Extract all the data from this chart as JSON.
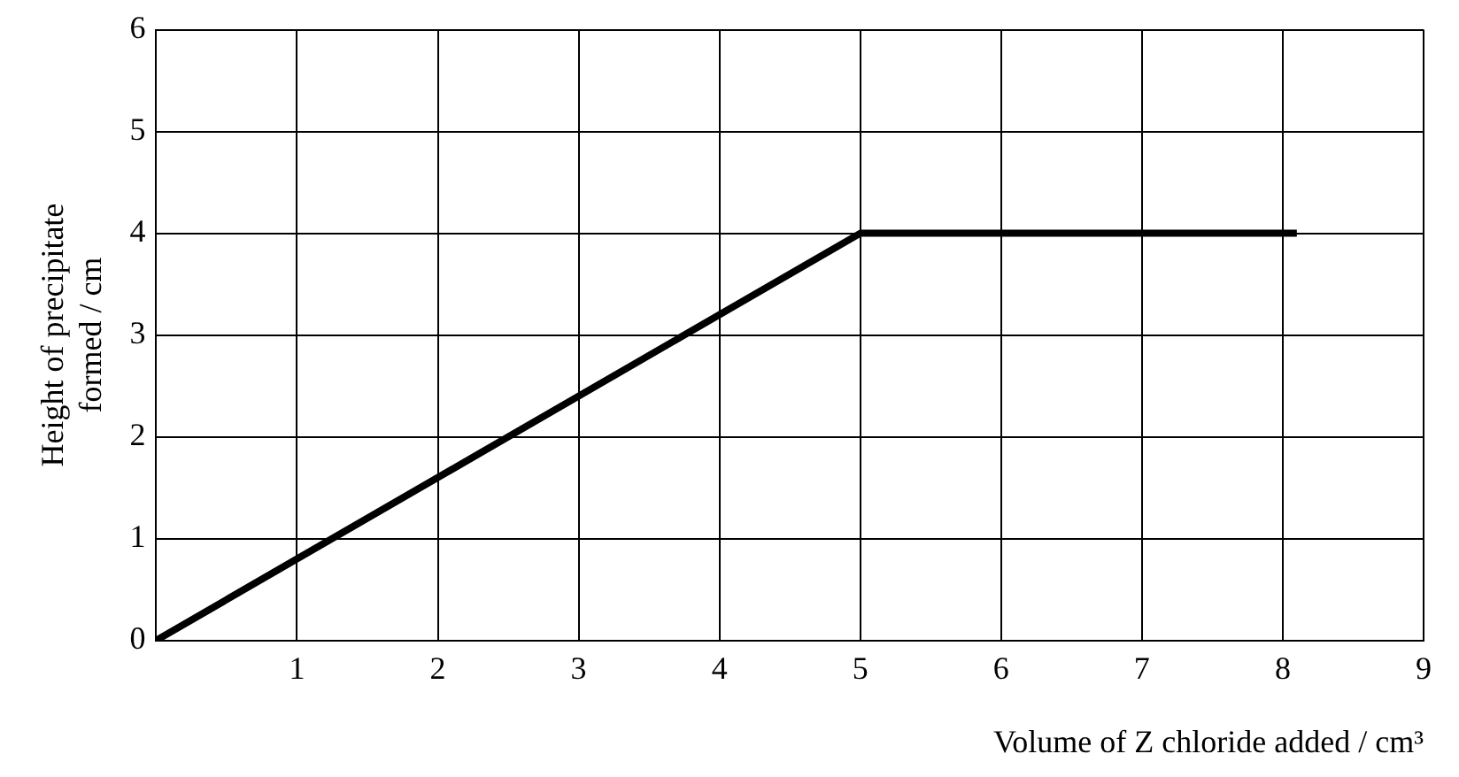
{
  "chart_data": {
    "type": "line",
    "xlabel": "Volume of Z chloride added / cm³",
    "ylabel": "Height of precipitate\nformed / cm",
    "x": [
      0,
      5,
      8.1
    ],
    "series": [
      {
        "color": "#000000",
        "values": [
          0,
          4,
          4
        ]
      }
    ],
    "xlim": [
      0,
      9
    ],
    "xticks": [
      {
        "value": 0,
        "label": null
      },
      1,
      2,
      3,
      4,
      5,
      6,
      7,
      8,
      9
    ],
    "ylim": [
      0,
      6
    ],
    "yticks": [
      0,
      1,
      2,
      3,
      4,
      5,
      6
    ],
    "grid": true,
    "legend": false,
    "marker": "none",
    "line_style": "solid"
  }
}
